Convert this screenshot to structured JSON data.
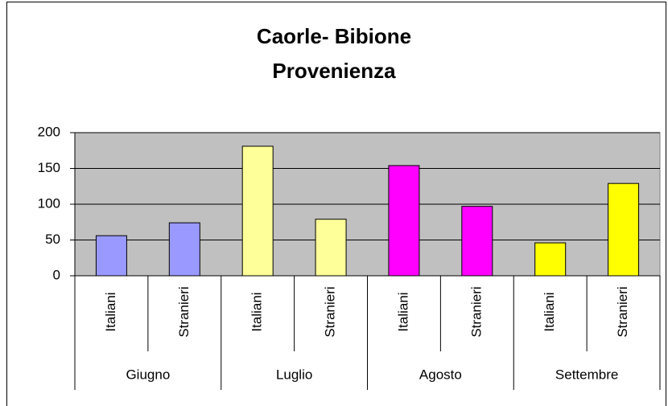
{
  "chart_data": {
    "type": "bar",
    "title": [
      "Caorle- Bibione",
      "Provenienza"
    ],
    "groups": [
      {
        "name": "Giugno",
        "color": "#9999ff",
        "categories": [
          "Italiani",
          "Stranieri"
        ]
      },
      {
        "name": "Luglio",
        "color": "#ffff99",
        "categories": [
          "Italiani",
          "Stranieri"
        ]
      },
      {
        "name": "Agosto",
        "color": "#ff00ff",
        "categories": [
          "Italiani",
          "Stranieri"
        ]
      },
      {
        "name": "Settembre",
        "color": "#ffff00",
        "categories": [
          "Italiani",
          "Stranieri"
        ]
      }
    ],
    "values": [
      56,
      74,
      181,
      79,
      154,
      97,
      46,
      129
    ],
    "ylim": [
      0,
      200
    ],
    "yticks": [
      0,
      50,
      100,
      150,
      200
    ],
    "grid": true
  }
}
